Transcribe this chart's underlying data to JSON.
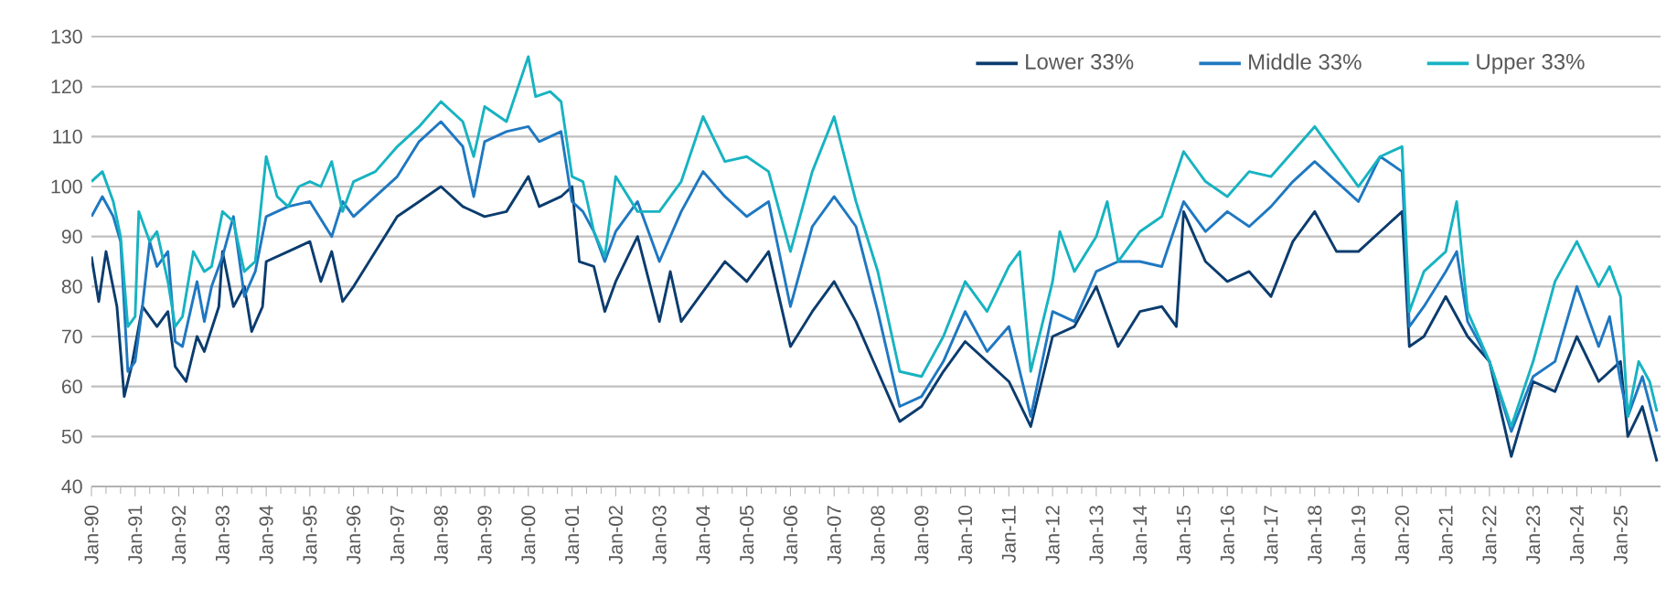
{
  "chart_data": {
    "type": "line",
    "legend": "top right",
    "grid": "y",
    "marker": "none",
    "line_style": "solid",
    "xlim": [
      "1990-01",
      "2025-12"
    ],
    "ylim": [
      40,
      130
    ],
    "yticks": [
      40,
      50,
      60,
      70,
      80,
      90,
      100,
      110,
      120,
      130
    ],
    "xticks": [
      {
        "value": "1990-01",
        "label": "Jan-90"
      },
      {
        "value": "1991-01",
        "label": "Jan-91"
      },
      {
        "value": "1992-01",
        "label": "Jan-92"
      },
      {
        "value": "1993-01",
        "label": "Jan-93"
      },
      {
        "value": "1994-01",
        "label": "Jan-94"
      },
      {
        "value": "1995-01",
        "label": "Jan-95"
      },
      {
        "value": "1996-01",
        "label": "Jan-96"
      },
      {
        "value": "1997-01",
        "label": "Jan-97"
      },
      {
        "value": "1998-01",
        "label": "Jan-98"
      },
      {
        "value": "1999-01",
        "label": "Jan-99"
      },
      {
        "value": "2000-01",
        "label": "Jan-00"
      },
      {
        "value": "2001-01",
        "label": "Jan-01"
      },
      {
        "value": "2002-01",
        "label": "Jan-02"
      },
      {
        "value": "2003-01",
        "label": "Jan-03"
      },
      {
        "value": "2004-01",
        "label": "Jan-04"
      },
      {
        "value": "2005-01",
        "label": "Jan-05"
      },
      {
        "value": "2006-01",
        "label": "Jan-06"
      },
      {
        "value": "2007-01",
        "label": "Jan-07"
      },
      {
        "value": "2008-01",
        "label": "Jan-08"
      },
      {
        "value": "2009-01",
        "label": "Jan-09"
      },
      {
        "value": "2010-01",
        "label": "Jan-10"
      },
      {
        "value": "2011-01",
        "label": "Jan-11"
      },
      {
        "value": "2012-01",
        "label": "Jan-12"
      },
      {
        "value": "2013-01",
        "label": "Jan-13"
      },
      {
        "value": "2014-01",
        "label": "Jan-14"
      },
      {
        "value": "2015-01",
        "label": "Jan-15"
      },
      {
        "value": "2016-01",
        "label": "Jan-16"
      },
      {
        "value": "2017-01",
        "label": "Jan-17"
      },
      {
        "value": "2018-01",
        "label": "Jan-18"
      },
      {
        "value": "2019-01",
        "label": "Jan-19"
      },
      {
        "value": "2020-01",
        "label": "Jan-20"
      },
      {
        "value": "2021-01",
        "label": "Jan-21"
      },
      {
        "value": "2022-01",
        "label": "Jan-22"
      },
      {
        "value": "2023-01",
        "label": "Jan-23"
      },
      {
        "value": "2024-01",
        "label": "Jan-24"
      },
      {
        "value": "2025-01",
        "label": "Jan-25"
      }
    ],
    "series": [
      {
        "name": "Lower 33%",
        "color": "#0b3c6e",
        "x": [
          "1990-01",
          "1990-03",
          "1990-05",
          "1990-08",
          "1990-10",
          "1990-12",
          "1991-03",
          "1991-07",
          "1991-10",
          "1991-12",
          "1992-03",
          "1992-06",
          "1992-08",
          "1992-12",
          "1993-01",
          "1993-04",
          "1993-07",
          "1993-09",
          "1993-12",
          "1994-01",
          "1994-07",
          "1995-01",
          "1995-04",
          "1995-07",
          "1995-10",
          "1996-01",
          "1996-07",
          "1997-01",
          "1997-07",
          "1998-01",
          "1998-07",
          "1999-01",
          "1999-07",
          "2000-01",
          "2000-04",
          "2000-10",
          "2001-01",
          "2001-03",
          "2001-07",
          "2001-10",
          "2002-01",
          "2002-07",
          "2003-01",
          "2003-04",
          "2003-07",
          "2004-01",
          "2004-07",
          "2005-01",
          "2005-07",
          "2006-01",
          "2006-07",
          "2007-01",
          "2007-07",
          "2008-01",
          "2008-07",
          "2009-01",
          "2009-07",
          "2010-01",
          "2010-07",
          "2011-01",
          "2011-07",
          "2012-01",
          "2012-07",
          "2013-01",
          "2013-07",
          "2014-01",
          "2014-07",
          "2014-11",
          "2015-01",
          "2015-07",
          "2016-01",
          "2016-07",
          "2017-01",
          "2017-07",
          "2018-01",
          "2018-07",
          "2019-01",
          "2019-07",
          "2020-01",
          "2020-03",
          "2020-07",
          "2021-01",
          "2021-07",
          "2022-01",
          "2022-07",
          "2023-01",
          "2023-07",
          "2024-01",
          "2024-07",
          "2025-01",
          "2025-03",
          "2025-07",
          "2025-11"
        ],
        "values": [
          86,
          77,
          87,
          76,
          58,
          64,
          76,
          72,
          75,
          64,
          61,
          70,
          67,
          76,
          87,
          76,
          80,
          71,
          76,
          85,
          87,
          89,
          81,
          87,
          77,
          80,
          87,
          94,
          97,
          100,
          96,
          94,
          95,
          102,
          96,
          98,
          100,
          85,
          84,
          75,
          81,
          90,
          73,
          83,
          73,
          79,
          85,
          81,
          87,
          68,
          75,
          81,
          73,
          63,
          53,
          56,
          63,
          69,
          65,
          61,
          52,
          70,
          72,
          80,
          68,
          75,
          76,
          72,
          95,
          85,
          81,
          83,
          78,
          89,
          95,
          87,
          87,
          91,
          95,
          68,
          70,
          78,
          70,
          65,
          46,
          61,
          59,
          70,
          61,
          65,
          50,
          56,
          45
        ]
      },
      {
        "name": "Middle 33%",
        "color": "#1f78c1",
        "x": [
          "1990-01",
          "1990-04",
          "1990-07",
          "1990-09",
          "1990-11",
          "1991-01",
          "1991-03",
          "1991-05",
          "1991-07",
          "1991-10",
          "1991-12",
          "1992-02",
          "1992-06",
          "1992-08",
          "1992-10",
          "1993-01",
          "1993-04",
          "1993-07",
          "1993-10",
          "1994-01",
          "1994-07",
          "1995-01",
          "1995-07",
          "1995-10",
          "1996-01",
          "1996-07",
          "1997-01",
          "1997-07",
          "1998-01",
          "1998-07",
          "1998-10",
          "1999-01",
          "1999-07",
          "2000-01",
          "2000-04",
          "2000-10",
          "2001-01",
          "2001-04",
          "2001-07",
          "2001-10",
          "2002-01",
          "2002-07",
          "2003-01",
          "2003-07",
          "2004-01",
          "2004-07",
          "2005-01",
          "2005-07",
          "2006-01",
          "2006-07",
          "2007-01",
          "2007-07",
          "2008-01",
          "2008-07",
          "2009-01",
          "2009-07",
          "2010-01",
          "2010-07",
          "2011-01",
          "2011-07",
          "2012-01",
          "2012-07",
          "2013-01",
          "2013-07",
          "2014-01",
          "2014-07",
          "2015-01",
          "2015-07",
          "2016-01",
          "2016-07",
          "2017-01",
          "2017-07",
          "2018-01",
          "2018-07",
          "2019-01",
          "2019-07",
          "2020-01",
          "2020-03",
          "2020-07",
          "2021-01",
          "2021-04",
          "2021-07",
          "2022-01",
          "2022-07",
          "2023-01",
          "2023-07",
          "2024-01",
          "2024-07",
          "2024-10",
          "2025-01",
          "2025-03",
          "2025-07",
          "2025-11"
        ],
        "values": [
          94,
          98,
          94,
          89,
          63,
          65,
          76,
          89,
          84,
          87,
          69,
          68,
          81,
          73,
          80,
          86,
          94,
          78,
          83,
          94,
          96,
          97,
          90,
          97,
          94,
          98,
          102,
          109,
          113,
          108,
          98,
          109,
          111,
          112,
          109,
          111,
          97,
          95,
          91,
          85,
          91,
          97,
          85,
          95,
          103,
          98,
          94,
          97,
          76,
          92,
          98,
          92,
          75,
          56,
          58,
          65,
          75,
          67,
          72,
          54,
          75,
          73,
          83,
          85,
          85,
          84,
          97,
          91,
          95,
          92,
          96,
          101,
          105,
          101,
          97,
          106,
          103,
          72,
          76,
          83,
          87,
          73,
          65,
          51,
          62,
          65,
          80,
          68,
          74,
          61,
          54,
          62,
          51
        ]
      },
      {
        "name": "Upper 33%",
        "color": "#17b3c1",
        "x": [
          "1990-01",
          "1990-04",
          "1990-07",
          "1990-09",
          "1990-11",
          "1991-01",
          "1991-02",
          "1991-05",
          "1991-07",
          "1991-10",
          "1991-12",
          "1992-02",
          "1992-05",
          "1992-08",
          "1992-10",
          "1993-01",
          "1993-04",
          "1993-07",
          "1993-10",
          "1994-01",
          "1994-04",
          "1994-07",
          "1994-10",
          "1995-01",
          "1995-04",
          "1995-07",
          "1995-10",
          "1996-01",
          "1996-07",
          "1997-01",
          "1997-07",
          "1998-01",
          "1998-07",
          "1998-10",
          "1999-01",
          "1999-07",
          "2000-01",
          "2000-03",
          "2000-07",
          "2000-10",
          "2001-01",
          "2001-04",
          "2001-07",
          "2001-10",
          "2002-01",
          "2002-07",
          "2003-01",
          "2003-07",
          "2004-01",
          "2004-07",
          "2005-01",
          "2005-07",
          "2006-01",
          "2006-07",
          "2007-01",
          "2007-07",
          "2008-01",
          "2008-07",
          "2009-01",
          "2009-07",
          "2010-01",
          "2010-07",
          "2011-01",
          "2011-04",
          "2011-07",
          "2012-01",
          "2012-03",
          "2012-07",
          "2013-01",
          "2013-04",
          "2013-07",
          "2014-01",
          "2014-07",
          "2015-01",
          "2015-07",
          "2016-01",
          "2016-07",
          "2017-01",
          "2017-07",
          "2018-01",
          "2018-07",
          "2019-01",
          "2019-07",
          "2020-01",
          "2020-03",
          "2020-07",
          "2021-01",
          "2021-04",
          "2021-07",
          "2022-01",
          "2022-07",
          "2023-01",
          "2023-07",
          "2024-01",
          "2024-07",
          "2024-10",
          "2025-01",
          "2025-03",
          "2025-06",
          "2025-09",
          "2025-11"
        ],
        "values": [
          101,
          103,
          97,
          90,
          72,
          74,
          95,
          89,
          91,
          81,
          72,
          74,
          87,
          83,
          84,
          95,
          93,
          83,
          85,
          106,
          98,
          96,
          100,
          101,
          100,
          105,
          95,
          101,
          103,
          108,
          112,
          117,
          113,
          106,
          116,
          113,
          126,
          118,
          119,
          117,
          102,
          101,
          91,
          86,
          102,
          95,
          95,
          101,
          114,
          105,
          106,
          103,
          87,
          103,
          114,
          97,
          83,
          63,
          62,
          70,
          81,
          75,
          84,
          87,
          63,
          81,
          91,
          83,
          90,
          97,
          85,
          91,
          94,
          107,
          101,
          98,
          103,
          102,
          107,
          112,
          106,
          100,
          106,
          108,
          75,
          83,
          87,
          97,
          75,
          65,
          52,
          65,
          81,
          89,
          80,
          84,
          78,
          54,
          65,
          61,
          55
        ]
      }
    ]
  }
}
